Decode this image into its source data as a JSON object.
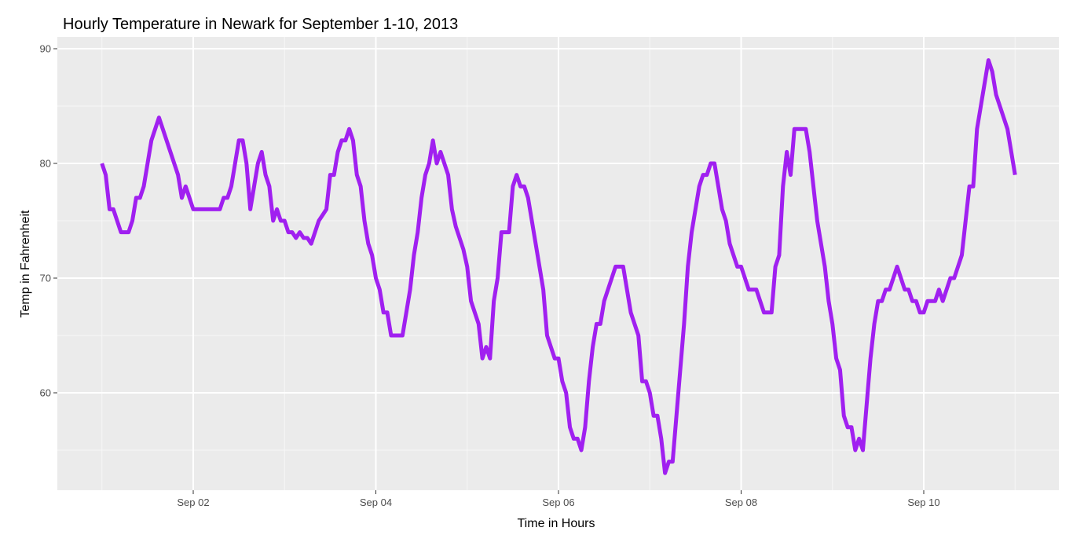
{
  "chart_data": {
    "type": "line",
    "title": "Hourly Temperature in Newark for September 1-10, 2013",
    "xlabel": "Time in Hours",
    "ylabel": "Temp in Fahrenheit",
    "x_unit": "date",
    "xlim": [
      "2013-09-01",
      "2013-09-11"
    ],
    "ylim": [
      51,
      91
    ],
    "x_ticks": [
      {
        "value": "2013-09-02",
        "label": "Sep 02"
      },
      {
        "value": "2013-09-04",
        "label": "Sep 04"
      },
      {
        "value": "2013-09-06",
        "label": "Sep 06"
      },
      {
        "value": "2013-09-08",
        "label": "Sep 08"
      },
      {
        "value": "2013-09-10",
        "label": "Sep 10"
      }
    ],
    "y_ticks": [
      60,
      70,
      80,
      90
    ],
    "grid": true,
    "legend": "none",
    "series": [
      {
        "color": "#a020f0",
        "points": [
          [
            "2013-09-01 00:00",
            80
          ],
          [
            "2013-09-01 01:00",
            79
          ],
          [
            "2013-09-01 02:00",
            76
          ],
          [
            "2013-09-01 03:00",
            76
          ],
          [
            "2013-09-01 04:00",
            75
          ],
          [
            "2013-09-01 05:00",
            74
          ],
          [
            "2013-09-01 06:00",
            74
          ],
          [
            "2013-09-01 07:00",
            74
          ],
          [
            "2013-09-01 08:00",
            75
          ],
          [
            "2013-09-01 09:00",
            77
          ],
          [
            "2013-09-01 10:00",
            77
          ],
          [
            "2013-09-01 11:00",
            78
          ],
          [
            "2013-09-01 12:00",
            80
          ],
          [
            "2013-09-01 13:00",
            82
          ],
          [
            "2013-09-01 14:00",
            83
          ],
          [
            "2013-09-01 15:00",
            84
          ],
          [
            "2013-09-01 16:00",
            83
          ],
          [
            "2013-09-01 17:00",
            82
          ],
          [
            "2013-09-01 18:00",
            81
          ],
          [
            "2013-09-01 19:00",
            80
          ],
          [
            "2013-09-01 20:00",
            79
          ],
          [
            "2013-09-01 21:00",
            77
          ],
          [
            "2013-09-01 22:00",
            78
          ],
          [
            "2013-09-01 23:00",
            77
          ],
          [
            "2013-09-02 00:00",
            76
          ],
          [
            "2013-09-02 01:00",
            76
          ],
          [
            "2013-09-02 02:00",
            76
          ],
          [
            "2013-09-02 03:00",
            76
          ],
          [
            "2013-09-02 04:00",
            76
          ],
          [
            "2013-09-02 05:00",
            76
          ],
          [
            "2013-09-02 06:00",
            76
          ],
          [
            "2013-09-02 07:00",
            76
          ],
          [
            "2013-09-02 08:00",
            77
          ],
          [
            "2013-09-02 09:00",
            77
          ],
          [
            "2013-09-02 10:00",
            78
          ],
          [
            "2013-09-02 11:00",
            80
          ],
          [
            "2013-09-02 12:00",
            82
          ],
          [
            "2013-09-02 13:00",
            82
          ],
          [
            "2013-09-02 14:00",
            80
          ],
          [
            "2013-09-02 15:00",
            76
          ],
          [
            "2013-09-02 16:00",
            78
          ],
          [
            "2013-09-02 17:00",
            80
          ],
          [
            "2013-09-02 18:00",
            81
          ],
          [
            "2013-09-02 19:00",
            79
          ],
          [
            "2013-09-02 20:00",
            78
          ],
          [
            "2013-09-02 21:00",
            75
          ],
          [
            "2013-09-02 22:00",
            76
          ],
          [
            "2013-09-02 23:00",
            75
          ],
          [
            "2013-09-03 00:00",
            75
          ],
          [
            "2013-09-03 01:00",
            74
          ],
          [
            "2013-09-03 02:00",
            74
          ],
          [
            "2013-09-03 03:00",
            73.5
          ],
          [
            "2013-09-03 04:00",
            74
          ],
          [
            "2013-09-03 05:00",
            73.5
          ],
          [
            "2013-09-03 06:00",
            73.5
          ],
          [
            "2013-09-03 07:00",
            73
          ],
          [
            "2013-09-03 08:00",
            74
          ],
          [
            "2013-09-03 09:00",
            75
          ],
          [
            "2013-09-03 10:00",
            75.5
          ],
          [
            "2013-09-03 11:00",
            76
          ],
          [
            "2013-09-03 12:00",
            79
          ],
          [
            "2013-09-03 13:00",
            79
          ],
          [
            "2013-09-03 14:00",
            81
          ],
          [
            "2013-09-03 15:00",
            82
          ],
          [
            "2013-09-03 16:00",
            82
          ],
          [
            "2013-09-03 17:00",
            83
          ],
          [
            "2013-09-03 18:00",
            82
          ],
          [
            "2013-09-03 19:00",
            79
          ],
          [
            "2013-09-03 20:00",
            78
          ],
          [
            "2013-09-03 21:00",
            75
          ],
          [
            "2013-09-03 22:00",
            73
          ],
          [
            "2013-09-03 23:00",
            72
          ],
          [
            "2013-09-04 00:00",
            70
          ],
          [
            "2013-09-04 01:00",
            69
          ],
          [
            "2013-09-04 02:00",
            67
          ],
          [
            "2013-09-04 03:00",
            67
          ],
          [
            "2013-09-04 04:00",
            65
          ],
          [
            "2013-09-04 05:00",
            65
          ],
          [
            "2013-09-04 06:00",
            65
          ],
          [
            "2013-09-04 07:00",
            65
          ],
          [
            "2013-09-04 08:00",
            67
          ],
          [
            "2013-09-04 09:00",
            69
          ],
          [
            "2013-09-04 10:00",
            72
          ],
          [
            "2013-09-04 11:00",
            74
          ],
          [
            "2013-09-04 12:00",
            77
          ],
          [
            "2013-09-04 13:00",
            79
          ],
          [
            "2013-09-04 14:00",
            80
          ],
          [
            "2013-09-04 15:00",
            82
          ],
          [
            "2013-09-04 16:00",
            80
          ],
          [
            "2013-09-04 17:00",
            81
          ],
          [
            "2013-09-04 18:00",
            80
          ],
          [
            "2013-09-04 19:00",
            79
          ],
          [
            "2013-09-04 20:00",
            76
          ],
          [
            "2013-09-04 21:00",
            74.5
          ],
          [
            "2013-09-04 22:00",
            73.5
          ],
          [
            "2013-09-04 23:00",
            72.5
          ],
          [
            "2013-09-05 00:00",
            71
          ],
          [
            "2013-09-05 01:00",
            68
          ],
          [
            "2013-09-05 02:00",
            67
          ],
          [
            "2013-09-05 03:00",
            66
          ],
          [
            "2013-09-05 04:00",
            63
          ],
          [
            "2013-09-05 05:00",
            64
          ],
          [
            "2013-09-05 06:00",
            63
          ],
          [
            "2013-09-05 07:00",
            68
          ],
          [
            "2013-09-05 08:00",
            70
          ],
          [
            "2013-09-05 09:00",
            74
          ],
          [
            "2013-09-05 10:00",
            74
          ],
          [
            "2013-09-05 11:00",
            74
          ],
          [
            "2013-09-05 12:00",
            78
          ],
          [
            "2013-09-05 13:00",
            79
          ],
          [
            "2013-09-05 14:00",
            78
          ],
          [
            "2013-09-05 15:00",
            78
          ],
          [
            "2013-09-05 16:00",
            77
          ],
          [
            "2013-09-05 17:00",
            75
          ],
          [
            "2013-09-05 18:00",
            73
          ],
          [
            "2013-09-05 19:00",
            71
          ],
          [
            "2013-09-05 20:00",
            69
          ],
          [
            "2013-09-05 21:00",
            65
          ],
          [
            "2013-09-05 22:00",
            64
          ],
          [
            "2013-09-05 23:00",
            63
          ],
          [
            "2013-09-06 00:00",
            63
          ],
          [
            "2013-09-06 01:00",
            61
          ],
          [
            "2013-09-06 02:00",
            60
          ],
          [
            "2013-09-06 03:00",
            57
          ],
          [
            "2013-09-06 04:00",
            56
          ],
          [
            "2013-09-06 05:00",
            56
          ],
          [
            "2013-09-06 06:00",
            55
          ],
          [
            "2013-09-06 07:00",
            57
          ],
          [
            "2013-09-06 08:00",
            61
          ],
          [
            "2013-09-06 09:00",
            64
          ],
          [
            "2013-09-06 10:00",
            66
          ],
          [
            "2013-09-06 11:00",
            66
          ],
          [
            "2013-09-06 12:00",
            68
          ],
          [
            "2013-09-06 13:00",
            69
          ],
          [
            "2013-09-06 14:00",
            70
          ],
          [
            "2013-09-06 15:00",
            71
          ],
          [
            "2013-09-06 16:00",
            71
          ],
          [
            "2013-09-06 17:00",
            71
          ],
          [
            "2013-09-06 18:00",
            69
          ],
          [
            "2013-09-06 19:00",
            67
          ],
          [
            "2013-09-06 20:00",
            66
          ],
          [
            "2013-09-06 21:00",
            65
          ],
          [
            "2013-09-06 22:00",
            61
          ],
          [
            "2013-09-06 23:00",
            61
          ],
          [
            "2013-09-07 00:00",
            60
          ],
          [
            "2013-09-07 01:00",
            58
          ],
          [
            "2013-09-07 02:00",
            58
          ],
          [
            "2013-09-07 03:00",
            56
          ],
          [
            "2013-09-07 04:00",
            53
          ],
          [
            "2013-09-07 05:00",
            54
          ],
          [
            "2013-09-07 06:00",
            54
          ],
          [
            "2013-09-07 07:00",
            58
          ],
          [
            "2013-09-07 08:00",
            62
          ],
          [
            "2013-09-07 09:00",
            66
          ],
          [
            "2013-09-07 10:00",
            71
          ],
          [
            "2013-09-07 11:00",
            74
          ],
          [
            "2013-09-07 12:00",
            76
          ],
          [
            "2013-09-07 13:00",
            78
          ],
          [
            "2013-09-07 14:00",
            79
          ],
          [
            "2013-09-07 15:00",
            79
          ],
          [
            "2013-09-07 16:00",
            80
          ],
          [
            "2013-09-07 17:00",
            80
          ],
          [
            "2013-09-07 18:00",
            78
          ],
          [
            "2013-09-07 19:00",
            76
          ],
          [
            "2013-09-07 20:00",
            75
          ],
          [
            "2013-09-07 21:00",
            73
          ],
          [
            "2013-09-07 22:00",
            72
          ],
          [
            "2013-09-07 23:00",
            71
          ],
          [
            "2013-09-08 00:00",
            71
          ],
          [
            "2013-09-08 01:00",
            70
          ],
          [
            "2013-09-08 02:00",
            69
          ],
          [
            "2013-09-08 03:00",
            69
          ],
          [
            "2013-09-08 04:00",
            69
          ],
          [
            "2013-09-08 05:00",
            68
          ],
          [
            "2013-09-08 06:00",
            67
          ],
          [
            "2013-09-08 07:00",
            67
          ],
          [
            "2013-09-08 08:00",
            67
          ],
          [
            "2013-09-08 09:00",
            71
          ],
          [
            "2013-09-08 10:00",
            72
          ],
          [
            "2013-09-08 11:00",
            78
          ],
          [
            "2013-09-08 12:00",
            81
          ],
          [
            "2013-09-08 13:00",
            79
          ],
          [
            "2013-09-08 14:00",
            83
          ],
          [
            "2013-09-08 15:00",
            83
          ],
          [
            "2013-09-08 16:00",
            83
          ],
          [
            "2013-09-08 17:00",
            83
          ],
          [
            "2013-09-08 18:00",
            81
          ],
          [
            "2013-09-08 19:00",
            78
          ],
          [
            "2013-09-08 20:00",
            75
          ],
          [
            "2013-09-08 21:00",
            73
          ],
          [
            "2013-09-08 22:00",
            71
          ],
          [
            "2013-09-08 23:00",
            68
          ],
          [
            "2013-09-09 00:00",
            66
          ],
          [
            "2013-09-09 01:00",
            63
          ],
          [
            "2013-09-09 02:00",
            62
          ],
          [
            "2013-09-09 03:00",
            58
          ],
          [
            "2013-09-09 04:00",
            57
          ],
          [
            "2013-09-09 05:00",
            57
          ],
          [
            "2013-09-09 06:00",
            55
          ],
          [
            "2013-09-09 07:00",
            56
          ],
          [
            "2013-09-09 08:00",
            55
          ],
          [
            "2013-09-09 09:00",
            59
          ],
          [
            "2013-09-09 10:00",
            63
          ],
          [
            "2013-09-09 11:00",
            66
          ],
          [
            "2013-09-09 12:00",
            68
          ],
          [
            "2013-09-09 13:00",
            68
          ],
          [
            "2013-09-09 14:00",
            69
          ],
          [
            "2013-09-09 15:00",
            69
          ],
          [
            "2013-09-09 16:00",
            70
          ],
          [
            "2013-09-09 17:00",
            71
          ],
          [
            "2013-09-09 18:00",
            70
          ],
          [
            "2013-09-09 19:00",
            69
          ],
          [
            "2013-09-09 20:00",
            69
          ],
          [
            "2013-09-09 21:00",
            68
          ],
          [
            "2013-09-09 22:00",
            68
          ],
          [
            "2013-09-09 23:00",
            67
          ],
          [
            "2013-09-10 00:00",
            67
          ],
          [
            "2013-09-10 01:00",
            68
          ],
          [
            "2013-09-10 02:00",
            68
          ],
          [
            "2013-09-10 03:00",
            68
          ],
          [
            "2013-09-10 04:00",
            69
          ],
          [
            "2013-09-10 05:00",
            68
          ],
          [
            "2013-09-10 06:00",
            69
          ],
          [
            "2013-09-10 07:00",
            70
          ],
          [
            "2013-09-10 08:00",
            70
          ],
          [
            "2013-09-10 09:00",
            71
          ],
          [
            "2013-09-10 10:00",
            72
          ],
          [
            "2013-09-10 11:00",
            75
          ],
          [
            "2013-09-10 12:00",
            78
          ],
          [
            "2013-09-10 13:00",
            78
          ],
          [
            "2013-09-10 14:00",
            83
          ],
          [
            "2013-09-10 15:00",
            85
          ],
          [
            "2013-09-10 16:00",
            87
          ],
          [
            "2013-09-10 17:00",
            89
          ],
          [
            "2013-09-10 18:00",
            88
          ],
          [
            "2013-09-10 19:00",
            86
          ],
          [
            "2013-09-10 20:00",
            85
          ],
          [
            "2013-09-10 21:00",
            84
          ],
          [
            "2013-09-10 22:00",
            83
          ],
          [
            "2013-09-10 23:00",
            81
          ],
          [
            "2013-09-11 00:00",
            79
          ]
        ]
      }
    ]
  }
}
